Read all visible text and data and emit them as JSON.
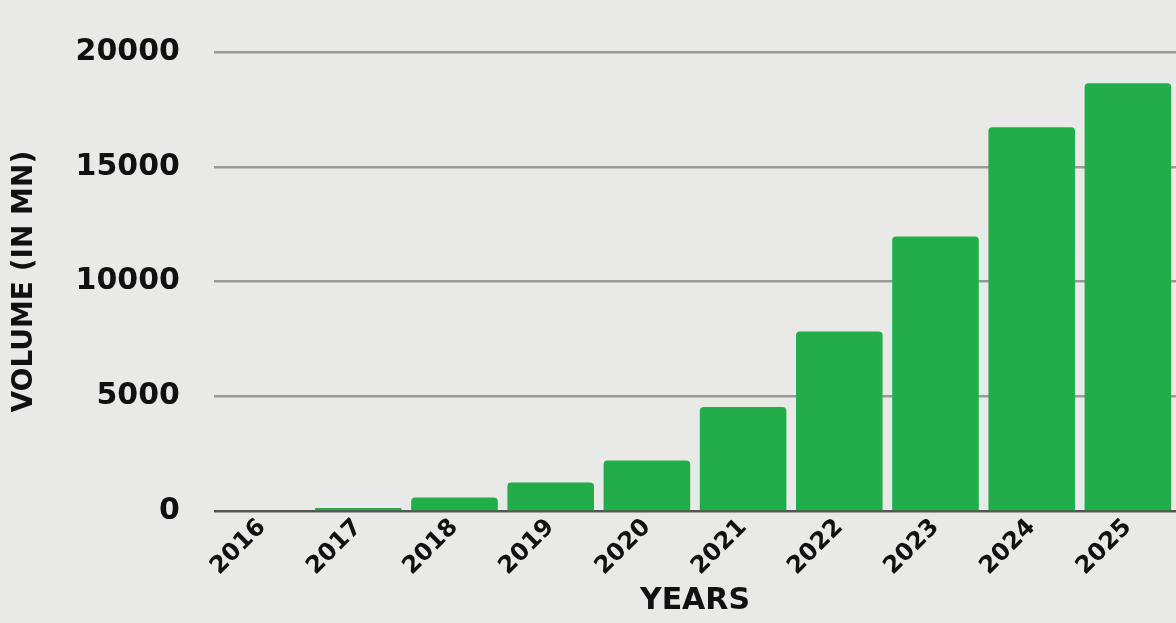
{
  "chart_data": {
    "type": "bar",
    "xlabel": "YEARS",
    "ylabel": "VOLUME (IN MN)",
    "categories": [
      "2016",
      "2017",
      "2018",
      "2019",
      "2020",
      "2021",
      "2022",
      "2023",
      "2024",
      "2025"
    ],
    "values": [
      0,
      150,
      600,
      1260,
      2220,
      4550,
      7830,
      11970,
      16720,
      18640
    ],
    "color": "#22ad4a",
    "ylim": [
      0,
      20000
    ],
    "yticks": [
      0,
      5000,
      10000,
      15000,
      20000
    ],
    "grid": "y",
    "legend": false
  }
}
